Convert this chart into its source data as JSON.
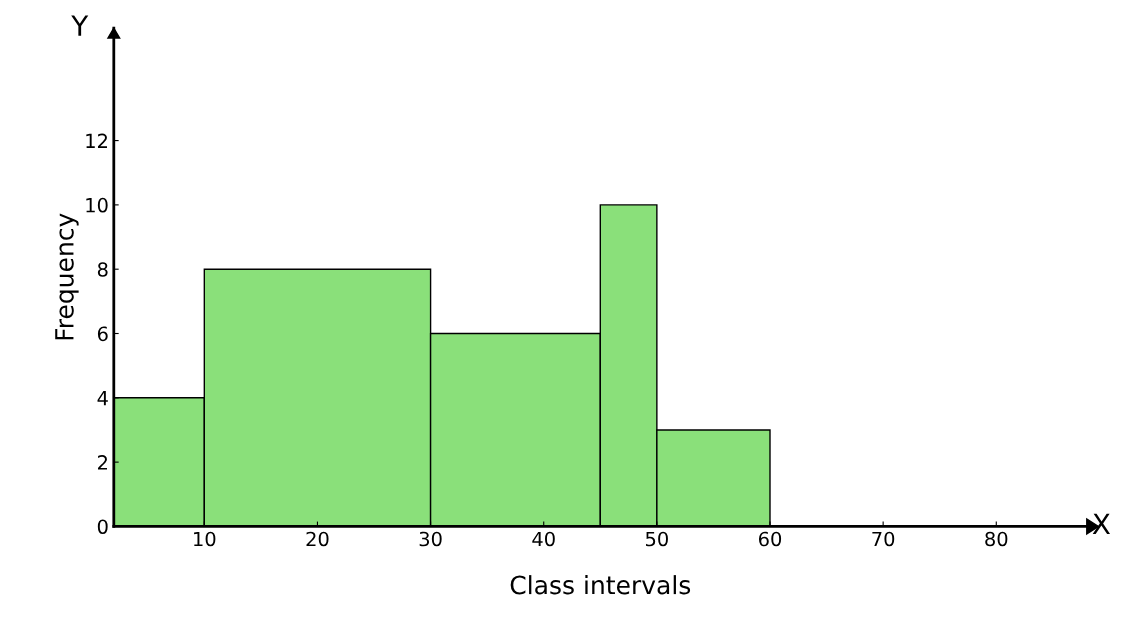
{
  "chart_data": {
    "type": "histogram",
    "xlabel": "Class intervals",
    "ylabel": "Frequency",
    "bins": [
      2,
      10,
      30,
      45,
      50,
      60
    ],
    "values": [
      4,
      8,
      6,
      10,
      3
    ],
    "color": "#8ae07a",
    "xlim": [
      2,
      88
    ],
    "ylim": [
      0,
      15.5
    ],
    "xticks": [
      10,
      20,
      30,
      40,
      50,
      60,
      70,
      80
    ],
    "yticks": [
      0,
      2,
      4,
      6,
      8,
      10,
      12
    ],
    "annotations": [
      "X",
      "Y"
    ],
    "grid": false,
    "legend": false
  }
}
